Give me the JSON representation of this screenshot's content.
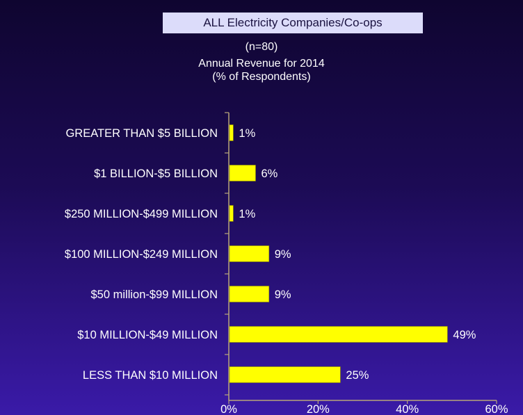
{
  "header": {
    "box_title": "ALL Electricity Companies/Co-ops",
    "sample": "(n=80)",
    "subtitle_line1": "Annual Revenue for 2014",
    "subtitle_line2": "(% of Respondents)"
  },
  "chart_data": {
    "type": "bar",
    "orientation": "horizontal",
    "categories": [
      "GREATER THAN $5 BILLION",
      "$1 BILLION-$5 BILLION",
      "$250 MILLION-$499 MILLION",
      "$100 MILLION-$249 MILLION",
      "$50 million-$99 MILLION",
      "$10 MILLION-$49 MILLION",
      "LESS THAN $10 MILLION"
    ],
    "values": [
      1,
      6,
      1,
      9,
      9,
      49,
      25
    ],
    "data_labels": [
      "1%",
      "6%",
      "1%",
      "9%",
      "9%",
      "49%",
      "25%"
    ],
    "xlim": [
      0,
      60
    ],
    "x_ticks": [
      0,
      20,
      40,
      60
    ],
    "x_tick_labels": [
      "0%",
      "20%",
      "40%",
      "60%"
    ],
    "grid": false,
    "legend": "none",
    "colors": {
      "bar": "#ffff00",
      "bar_edge": "#8a8a00",
      "axis": "#b8a67a",
      "text": "#ffffff"
    }
  }
}
